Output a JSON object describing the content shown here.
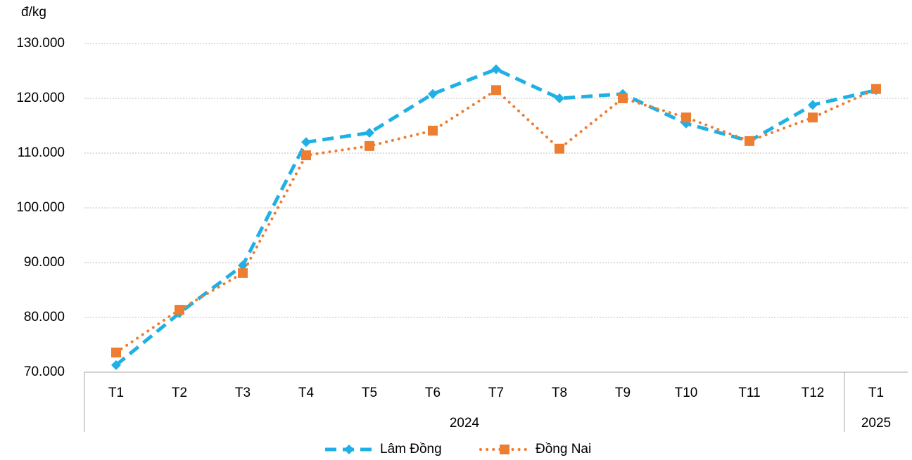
{
  "chart_data": {
    "type": "line",
    "y_unit_label": "đ/kg",
    "categories": [
      "T1",
      "T2",
      "T3",
      "T4",
      "T5",
      "T6",
      "T7",
      "T8",
      "T9",
      "T10",
      "T11",
      "T12",
      "T1"
    ],
    "x_groups": [
      {
        "label": "2024",
        "count": 12
      },
      {
        "label": "2025",
        "count": 1
      }
    ],
    "series": [
      {
        "name": "Lâm Đồng",
        "color": "#1fb0e6",
        "marker": "diamond",
        "line_style": "dashed",
        "values": [
          71300,
          80800,
          89500,
          112000,
          113700,
          120800,
          125300,
          120000,
          120800,
          115400,
          112200,
          118800,
          121500
        ]
      },
      {
        "name": "Đồng Nai",
        "color": "#ed7d31",
        "marker": "square",
        "line_style": "dotted",
        "values": [
          73600,
          81400,
          88100,
          109600,
          111300,
          114100,
          121500,
          110800,
          120000,
          116500,
          112200,
          116500,
          121700
        ]
      }
    ],
    "ylim": [
      70000,
      130000
    ],
    "yticks": [
      {
        "value": 70000,
        "label": "70.000"
      },
      {
        "value": 80000,
        "label": "80.000"
      },
      {
        "value": 90000,
        "label": "90.000"
      },
      {
        "value": 100000,
        "label": "100.000"
      },
      {
        "value": 110000,
        "label": "110.000"
      },
      {
        "value": 120000,
        "label": "120.000"
      },
      {
        "value": 130000,
        "label": "130.000"
      }
    ],
    "grid": true,
    "legend": "bottom"
  }
}
